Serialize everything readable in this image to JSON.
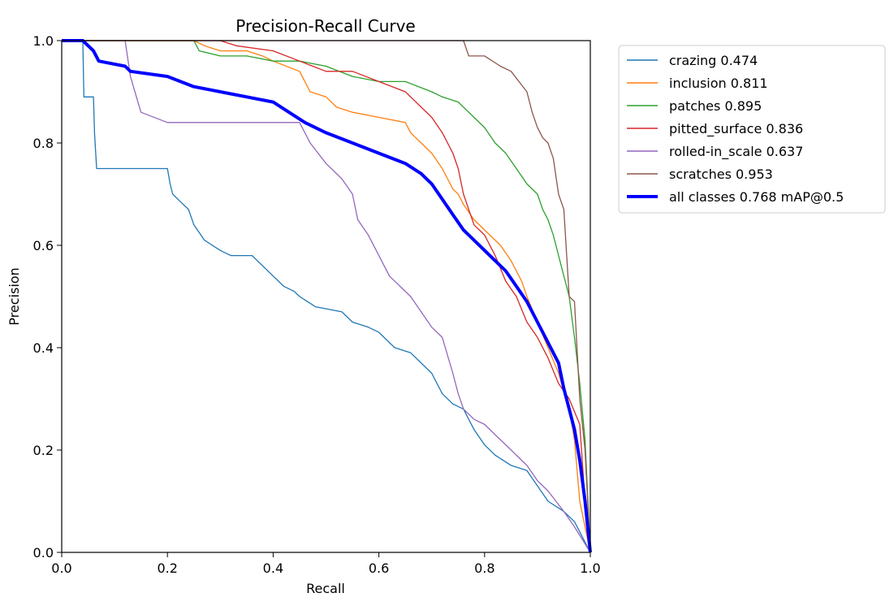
{
  "chart_data": {
    "type": "line",
    "title": "Precision-Recall Curve",
    "xlabel": "Recall",
    "ylabel": "Precision",
    "xlim": [
      0.0,
      1.0
    ],
    "ylim": [
      0.0,
      1.0
    ],
    "xticks": [
      "0.0",
      "0.2",
      "0.4",
      "0.6",
      "0.8",
      "1.0"
    ],
    "yticks": [
      "0.0",
      "0.2",
      "0.4",
      "0.6",
      "0.8",
      "1.0"
    ],
    "grid": false,
    "legend_position": "outside-top-right",
    "series": [
      {
        "name": "crazing 0.474",
        "color": "#1f77b4",
        "x": [
          0,
          0.04,
          0.042,
          0.06,
          0.062,
          0.066,
          0.07,
          0.2,
          0.205,
          0.21,
          0.22,
          0.24,
          0.25,
          0.27,
          0.3,
          0.32,
          0.36,
          0.4,
          0.42,
          0.44,
          0.45,
          0.48,
          0.53,
          0.55,
          0.58,
          0.6,
          0.63,
          0.66,
          0.68,
          0.7,
          0.72,
          0.74,
          0.76,
          0.78,
          0.8,
          0.82,
          0.85,
          0.88,
          0.9,
          0.92,
          0.95,
          0.97,
          1.0
        ],
        "y": [
          1.0,
          1.0,
          0.89,
          0.89,
          0.82,
          0.75,
          0.75,
          0.75,
          0.72,
          0.7,
          0.69,
          0.67,
          0.64,
          0.61,
          0.59,
          0.58,
          0.58,
          0.54,
          0.52,
          0.51,
          0.5,
          0.48,
          0.47,
          0.45,
          0.44,
          0.43,
          0.4,
          0.39,
          0.37,
          0.35,
          0.31,
          0.29,
          0.28,
          0.24,
          0.21,
          0.19,
          0.17,
          0.16,
          0.13,
          0.1,
          0.08,
          0.06,
          0.0
        ]
      },
      {
        "name": "inclusion 0.811",
        "color": "#ff7f0e",
        "x": [
          0,
          0.25,
          0.27,
          0.3,
          0.35,
          0.38,
          0.4,
          0.45,
          0.47,
          0.5,
          0.52,
          0.55,
          0.6,
          0.65,
          0.66,
          0.68,
          0.7,
          0.72,
          0.74,
          0.75,
          0.76,
          0.78,
          0.8,
          0.83,
          0.85,
          0.87,
          0.88,
          0.9,
          0.92,
          0.94,
          0.96,
          0.97,
          0.98,
          1.0
        ],
        "y": [
          1.0,
          1.0,
          0.99,
          0.98,
          0.98,
          0.97,
          0.96,
          0.94,
          0.9,
          0.89,
          0.87,
          0.86,
          0.85,
          0.84,
          0.82,
          0.8,
          0.78,
          0.75,
          0.71,
          0.7,
          0.68,
          0.65,
          0.63,
          0.6,
          0.57,
          0.53,
          0.5,
          0.45,
          0.4,
          0.35,
          0.28,
          0.22,
          0.1,
          0.0
        ]
      },
      {
        "name": "patches 0.895",
        "color": "#2ca02c",
        "x": [
          0,
          0.25,
          0.26,
          0.3,
          0.35,
          0.4,
          0.45,
          0.5,
          0.55,
          0.6,
          0.65,
          0.7,
          0.72,
          0.75,
          0.78,
          0.8,
          0.82,
          0.84,
          0.86,
          0.88,
          0.9,
          0.91,
          0.92,
          0.93,
          0.94,
          0.95,
          0.96,
          0.97,
          0.98,
          0.99,
          1.0
        ],
        "y": [
          1.0,
          1.0,
          0.98,
          0.97,
          0.97,
          0.96,
          0.96,
          0.95,
          0.93,
          0.92,
          0.92,
          0.9,
          0.89,
          0.88,
          0.85,
          0.83,
          0.8,
          0.78,
          0.75,
          0.72,
          0.7,
          0.67,
          0.65,
          0.62,
          0.58,
          0.54,
          0.5,
          0.42,
          0.33,
          0.22,
          0.0
        ]
      },
      {
        "name": "pitted_surface 0.836",
        "color": "#d62728",
        "x": [
          0,
          0.3,
          0.33,
          0.4,
          0.45,
          0.5,
          0.55,
          0.6,
          0.65,
          0.68,
          0.7,
          0.72,
          0.74,
          0.75,
          0.76,
          0.77,
          0.78,
          0.8,
          0.82,
          0.84,
          0.86,
          0.88,
          0.9,
          0.92,
          0.94,
          0.96,
          0.98,
          0.99,
          1.0
        ],
        "y": [
          1.0,
          1.0,
          0.99,
          0.98,
          0.96,
          0.94,
          0.94,
          0.92,
          0.9,
          0.87,
          0.85,
          0.82,
          0.78,
          0.75,
          0.7,
          0.67,
          0.64,
          0.62,
          0.58,
          0.53,
          0.5,
          0.45,
          0.42,
          0.38,
          0.33,
          0.3,
          0.25,
          0.1,
          0.0
        ]
      },
      {
        "name": "rolled-in_scale 0.637",
        "color": "#9467bd",
        "x": [
          0,
          0.12,
          0.13,
          0.15,
          0.2,
          0.25,
          0.3,
          0.35,
          0.45,
          0.47,
          0.5,
          0.53,
          0.55,
          0.56,
          0.58,
          0.6,
          0.62,
          0.64,
          0.66,
          0.68,
          0.7,
          0.72,
          0.74,
          0.75,
          0.76,
          0.78,
          0.8,
          0.82,
          0.85,
          0.88,
          0.9,
          0.92,
          0.95,
          0.97,
          1.0
        ],
        "y": [
          1.0,
          1.0,
          0.93,
          0.86,
          0.84,
          0.84,
          0.84,
          0.84,
          0.84,
          0.8,
          0.76,
          0.73,
          0.7,
          0.65,
          0.62,
          0.58,
          0.54,
          0.52,
          0.5,
          0.47,
          0.44,
          0.42,
          0.35,
          0.31,
          0.28,
          0.26,
          0.25,
          0.23,
          0.2,
          0.17,
          0.14,
          0.12,
          0.08,
          0.05,
          0.0
        ]
      },
      {
        "name": "scratches 0.953",
        "color": "#8c564b",
        "x": [
          0,
          0.76,
          0.77,
          0.8,
          0.83,
          0.85,
          0.88,
          0.89,
          0.9,
          0.91,
          0.92,
          0.93,
          0.94,
          0.95,
          0.96,
          0.97,
          0.98,
          0.99,
          1.0
        ],
        "y": [
          1.0,
          1.0,
          0.97,
          0.97,
          0.95,
          0.94,
          0.9,
          0.86,
          0.83,
          0.81,
          0.8,
          0.77,
          0.7,
          0.67,
          0.5,
          0.49,
          0.3,
          0.2,
          0.0
        ]
      },
      {
        "name": "all classes 0.768 mAP@0.5",
        "color": "#0000ff",
        "x": [
          0,
          0.04,
          0.06,
          0.07,
          0.12,
          0.13,
          0.2,
          0.25,
          0.3,
          0.35,
          0.4,
          0.43,
          0.46,
          0.5,
          0.55,
          0.6,
          0.65,
          0.68,
          0.7,
          0.72,
          0.74,
          0.76,
          0.78,
          0.8,
          0.82,
          0.84,
          0.86,
          0.88,
          0.9,
          0.92,
          0.94,
          0.95,
          0.96,
          0.97,
          0.98,
          0.99,
          1.0
        ],
        "y": [
          1.0,
          1.0,
          0.98,
          0.96,
          0.95,
          0.94,
          0.93,
          0.91,
          0.9,
          0.89,
          0.88,
          0.86,
          0.84,
          0.82,
          0.8,
          0.78,
          0.76,
          0.74,
          0.72,
          0.69,
          0.66,
          0.63,
          0.61,
          0.59,
          0.57,
          0.55,
          0.52,
          0.49,
          0.45,
          0.41,
          0.37,
          0.32,
          0.28,
          0.24,
          0.18,
          0.1,
          0.0
        ]
      }
    ]
  }
}
